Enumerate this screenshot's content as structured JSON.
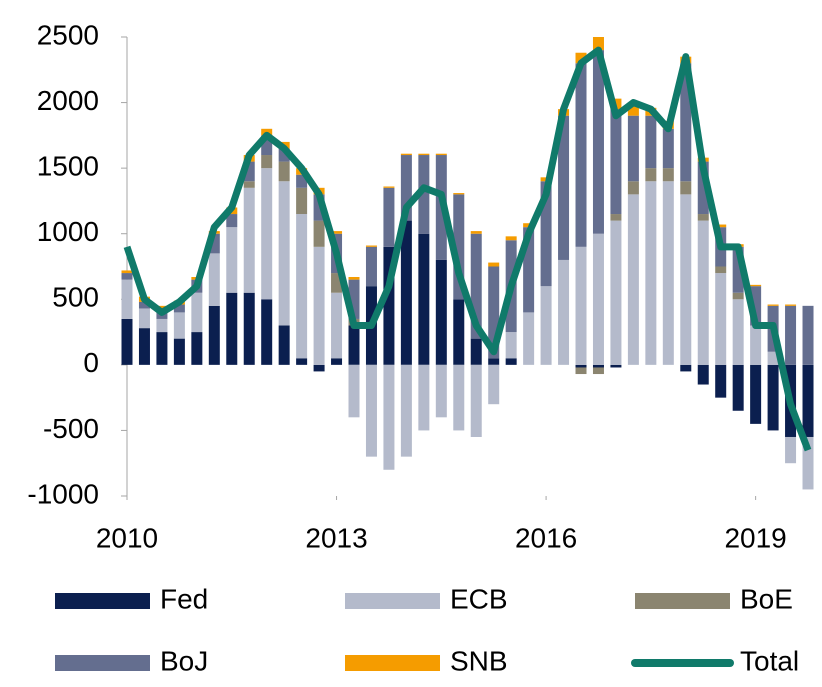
{
  "chart_data": {
    "type": "stacked_bar_line",
    "x": [
      2010,
      2010.25,
      2010.5,
      2010.75,
      2011,
      2011.25,
      2011.5,
      2011.75,
      2012,
      2012.25,
      2012.5,
      2012.75,
      2013,
      2013.25,
      2013.5,
      2013.75,
      2014,
      2014.25,
      2014.5,
      2014.75,
      2015,
      2015.25,
      2015.5,
      2015.75,
      2016,
      2016.25,
      2016.5,
      2016.75,
      2017,
      2017.25,
      2017.5,
      2017.75,
      2018,
      2018.25,
      2018.5,
      2018.75,
      2019,
      2019.25,
      2019.5,
      2019.75
    ],
    "xlim": [
      2010,
      2019.85
    ],
    "xticks": [
      2010,
      2013,
      2016,
      2019
    ],
    "ylim": [
      -1000,
      2500
    ],
    "yticks": [
      -1000,
      -500,
      0,
      500,
      1000,
      1500,
      2000,
      2500
    ],
    "series": [
      {
        "name": "Fed",
        "color": "#0b1f4f",
        "values": [
          350,
          280,
          250,
          200,
          250,
          450,
          550,
          550,
          500,
          300,
          50,
          -50,
          50,
          300,
          600,
          900,
          1100,
          1000,
          800,
          500,
          200,
          50,
          50,
          0,
          0,
          0,
          -20,
          -20,
          -20,
          0,
          0,
          0,
          -50,
          -150,
          -250,
          -350,
          -450,
          -500,
          -550,
          -550
        ]
      },
      {
        "name": "ECB",
        "color": "#b4bacb",
        "values": [
          300,
          150,
          100,
          200,
          300,
          400,
          500,
          800,
          1000,
          1100,
          1100,
          900,
          500,
          -400,
          -700,
          -800,
          -700,
          -500,
          -400,
          -500,
          -550,
          -300,
          200,
          400,
          600,
          800,
          900,
          1000,
          1100,
          1300,
          1400,
          1400,
          1300,
          1100,
          700,
          500,
          300,
          100,
          -200,
          -400
        ]
      },
      {
        "name": "BoE",
        "color": "#8b8570",
        "values": [
          0,
          0,
          0,
          0,
          0,
          0,
          0,
          50,
          100,
          150,
          200,
          200,
          150,
          50,
          0,
          0,
          0,
          0,
          0,
          0,
          0,
          0,
          0,
          0,
          0,
          0,
          -50,
          -50,
          50,
          100,
          100,
          100,
          100,
          50,
          50,
          50,
          0,
          0,
          0,
          0
        ]
      },
      {
        "name": "BoJ",
        "color": "#646e8f",
        "values": [
          50,
          50,
          50,
          60,
          100,
          150,
          100,
          150,
          150,
          100,
          100,
          200,
          300,
          300,
          300,
          450,
          500,
          600,
          800,
          800,
          800,
          700,
          700,
          650,
          800,
          1100,
          1400,
          1400,
          800,
          500,
          400,
          300,
          900,
          400,
          300,
          350,
          300,
          350,
          450,
          450
        ]
      },
      {
        "name": "SNB",
        "color": "#f59c00",
        "values": [
          20,
          40,
          50,
          30,
          20,
          20,
          50,
          50,
          50,
          50,
          50,
          50,
          20,
          20,
          10,
          10,
          10,
          10,
          10,
          10,
          20,
          30,
          30,
          30,
          30,
          50,
          80,
          100,
          80,
          80,
          60,
          60,
          50,
          30,
          20,
          20,
          10,
          10,
          10,
          0
        ]
      },
      {
        "name": "Total",
        "color": "#107a6a",
        "line": true,
        "values": [
          900,
          500,
          400,
          480,
          600,
          1050,
          1200,
          1600,
          1750,
          1650,
          1500,
          1300,
          850,
          300,
          300,
          600,
          1200,
          1350,
          1300,
          700,
          300,
          100,
          600,
          1000,
          1300,
          1950,
          2300,
          2400,
          1900,
          2000,
          1950,
          1800,
          2350,
          1500,
          900,
          900,
          300,
          300,
          -300,
          -650
        ]
      }
    ]
  }
}
